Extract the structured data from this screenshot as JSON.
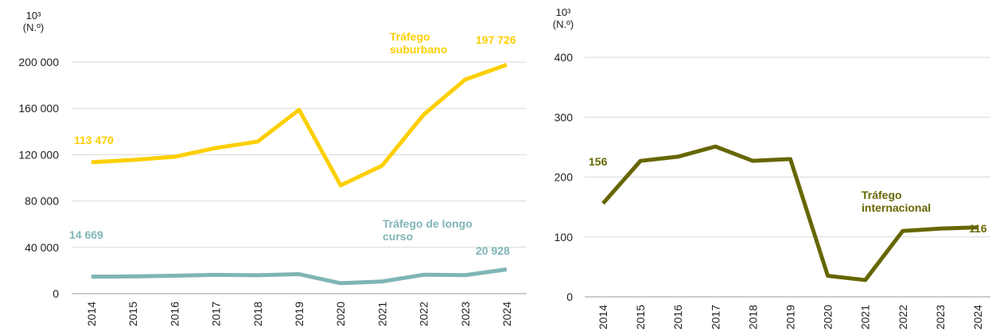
{
  "chart_data": [
    {
      "type": "line",
      "ylabel": "10³ (N.º)",
      "categories": [
        "2014",
        "2015",
        "2016",
        "2017",
        "2018",
        "2019",
        "2020",
        "2021",
        "2022",
        "2023",
        "2024"
      ],
      "series": [
        {
          "name": "Tráfego suburbano",
          "color": "#fccf00",
          "values": [
            113470,
            115500,
            118200,
            125800,
            131300,
            158800,
            93500,
            110600,
            154600,
            184900,
            197726
          ],
          "value_labels": [
            "113 470",
            null,
            null,
            null,
            null,
            null,
            null,
            null,
            null,
            null,
            "197 726"
          ]
        },
        {
          "name": "Tráfego de longo curso",
          "color": "#7fb5b5",
          "values": [
            14669,
            14900,
            15500,
            16200,
            15900,
            16800,
            9000,
            10500,
            16300,
            16000,
            20928
          ],
          "value_labels": [
            "14 669",
            null,
            null,
            null,
            null,
            null,
            null,
            null,
            null,
            null,
            "20 928"
          ]
        }
      ],
      "ylim": [
        0,
        200000
      ],
      "yticks": [
        0,
        {
          "value": 40000,
          "label": "40 000"
        },
        {
          "value": 80000,
          "label": "80 000"
        },
        {
          "value": 120000,
          "label": "120 000"
        },
        {
          "value": 160000,
          "label": "160 000"
        },
        {
          "value": 200000,
          "label": "200 000"
        }
      ],
      "grid": true
    },
    {
      "type": "line",
      "ylabel": "10³ (N.º)",
      "categories": [
        "2014",
        "2015",
        "2016",
        "2017",
        "2018",
        "2019",
        "2020",
        "2021",
        "2022",
        "2023",
        "2024"
      ],
      "series": [
        {
          "name": "Tráfego internacional",
          "color": "#666600",
          "values": [
            156,
            227,
            234,
            251,
            227,
            230,
            35,
            28,
            110,
            114,
            116
          ]
        }
      ],
      "ylim": [
        0,
        400
      ],
      "yticks": [
        0,
        100,
        200,
        300,
        400
      ],
      "grid": true
    }
  ]
}
